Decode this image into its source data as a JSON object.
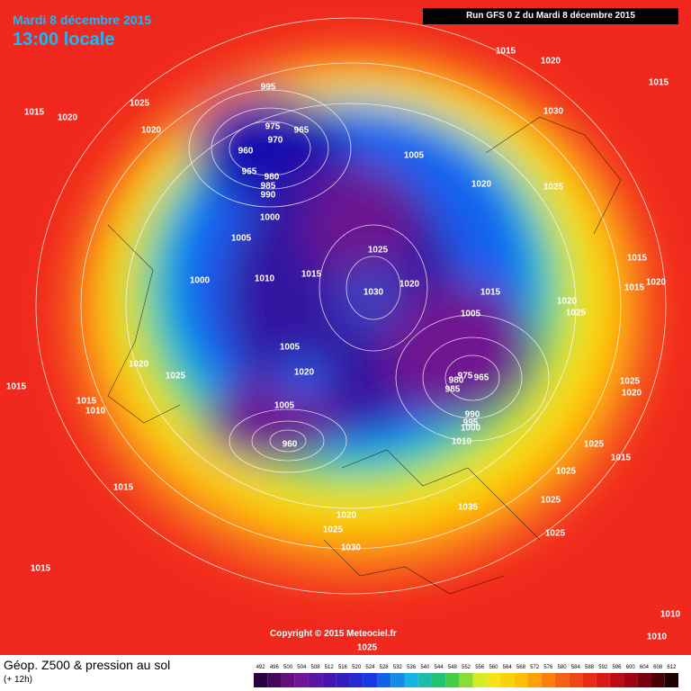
{
  "header": {
    "date": "Mardi 8 décembre 2015",
    "time": "13:00 locale",
    "run": "Run GFS 0 Z du Mardi 8 décembre 2015"
  },
  "copyright": "Copyright © 2015 Meteociel.fr",
  "footer": {
    "title": "Géop. Z500 & pression au sol",
    "lead": "(+ 12h)"
  },
  "legend": {
    "levels": [
      492,
      496,
      500,
      504,
      508,
      512,
      516,
      520,
      524,
      528,
      532,
      536,
      540,
      544,
      548,
      552,
      556,
      560,
      564,
      568,
      572,
      576,
      580,
      584,
      588,
      592,
      596,
      600,
      604,
      608,
      612
    ]
  },
  "isobars": [
    1015,
    1020,
    1015,
    1015,
    1020,
    1025,
    1020,
    995,
    975,
    965,
    970,
    960,
    965,
    980,
    985,
    990,
    1005,
    1030,
    1020,
    1025,
    1000,
    1005,
    1025,
    1015,
    1010,
    1000,
    1030,
    1020,
    1015,
    1020,
    1025,
    1005,
    1015,
    1015,
    1020,
    1005,
    1020,
    1025,
    1020,
    980,
    975,
    965,
    985,
    1025,
    1020,
    1015,
    1015,
    1010,
    1005,
    990,
    995,
    1000,
    1010,
    960,
    1025,
    1015,
    1025,
    1015,
    1025,
    1035,
    1020,
    1025,
    1025,
    1030,
    1015,
    1010,
    1010,
    1025
  ]
}
